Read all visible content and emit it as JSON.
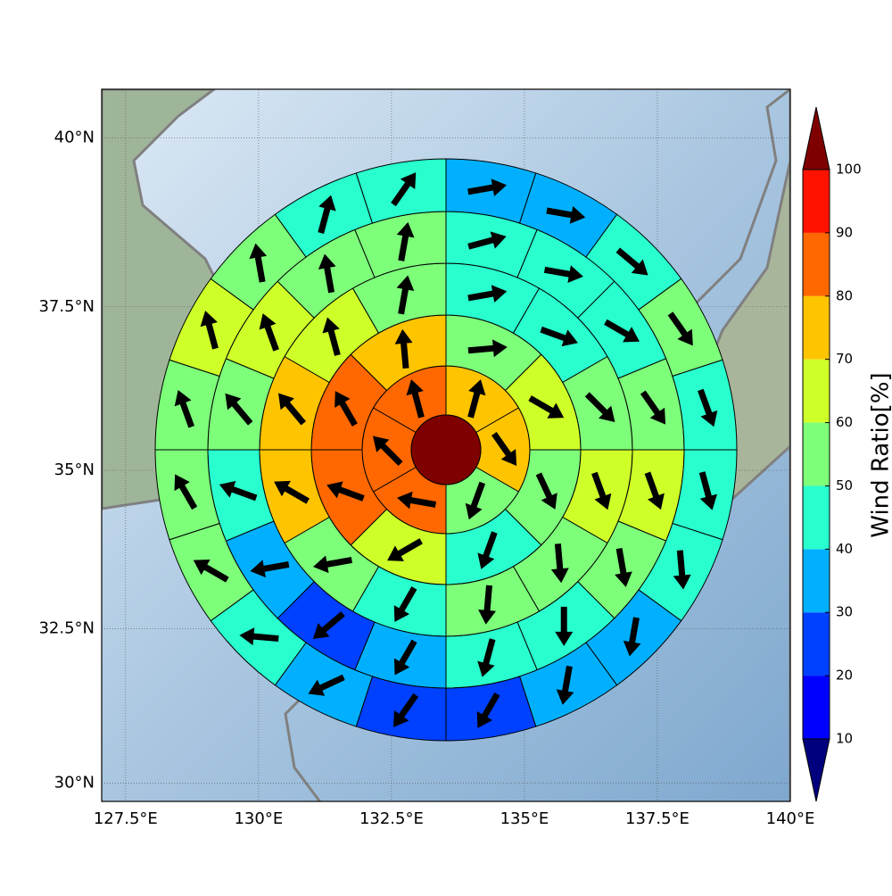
{
  "chart_data": {
    "type": "polar_sector_map",
    "projection": "mercator",
    "grid": true,
    "xlim": [
      127.05,
      140.0
    ],
    "xticks": [
      {
        "value": 127.5,
        "label": "127.5°E"
      },
      {
        "value": 130,
        "label": "130°E"
      },
      {
        "value": 132.5,
        "label": "132.5°E"
      },
      {
        "value": 135,
        "label": "135°E"
      },
      {
        "value": 137.5,
        "label": "137.5°E"
      },
      {
        "value": 140,
        "label": "140°E"
      }
    ],
    "ylim": [
      29.7,
      40.7
    ],
    "yticks": [
      {
        "value": 30,
        "label": "30°N"
      },
      {
        "value": 32.5,
        "label": "32.5°N"
      },
      {
        "value": 35,
        "label": "35°N"
      },
      {
        "value": 37.5,
        "label": "37.5°N"
      },
      {
        "value": 40,
        "label": "40°N"
      }
    ],
    "center_value": 100,
    "rings": [
      {
        "values": [
          75,
          75,
          55,
          85,
          85,
          85
        ],
        "bearings": [
          15,
          145,
          200,
          280,
          315,
          345
        ]
      },
      {
        "values": [
          55,
          65,
          55,
          45,
          65,
          85,
          85,
          75
        ],
        "bearings": [
          85,
          120,
          155,
          200,
          240,
          290,
          330,
          355
        ]
      },
      {
        "values": [
          45,
          45,
          55,
          65,
          55,
          55,
          45,
          55,
          75,
          75,
          65,
          55
        ],
        "bearings": [
          80,
          110,
          135,
          160,
          175,
          185,
          210,
          260,
          300,
          320,
          345,
          10
        ]
      },
      {
        "values": [
          45,
          45,
          45,
          55,
          65,
          55,
          45,
          45,
          35,
          25,
          35,
          45,
          55,
          65,
          55,
          55
        ],
        "bearings": [
          75,
          100,
          120,
          145,
          160,
          170,
          180,
          195,
          210,
          230,
          260,
          290,
          320,
          340,
          350,
          10
        ]
      },
      {
        "values": [
          35,
          35,
          45,
          55,
          45,
          45,
          45,
          35,
          35,
          25,
          25,
          35,
          45,
          55,
          55,
          55,
          65,
          55,
          45,
          45
        ],
        "bearings": [
          80,
          100,
          130,
          145,
          160,
          165,
          175,
          190,
          190,
          210,
          215,
          245,
          275,
          300,
          330,
          340,
          345,
          350,
          15,
          35
        ]
      }
    ],
    "colorbar": {
      "label": "Wind Ratio[%]",
      "extend": "both",
      "ticks": [
        10,
        20,
        30,
        40,
        50,
        60,
        70,
        80,
        90,
        100
      ],
      "colors": [
        "#00007f",
        "#0000ff",
        "#0040ff",
        "#00b0ff",
        "#29ffce",
        "#7dff7a",
        "#ceff29",
        "#ffc400",
        "#ff6800",
        "#ff1300",
        "#7f0000"
      ]
    }
  }
}
